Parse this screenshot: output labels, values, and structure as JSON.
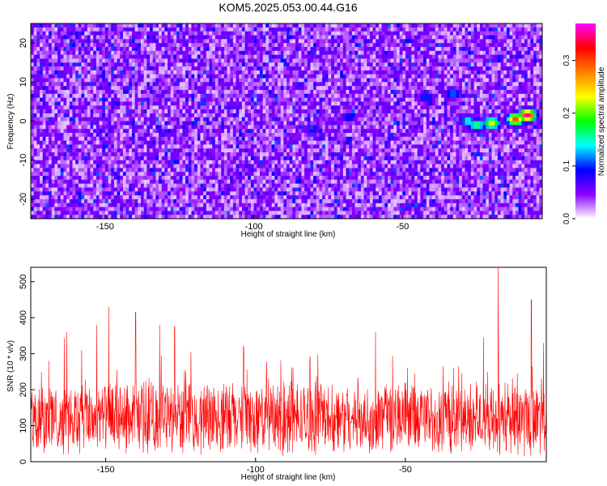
{
  "title": "KOM5.2025.053.00.44.G16",
  "chart_data": [
    {
      "type": "heatmap",
      "xlabel": "Height of straight line (km)",
      "ylabel": "Frequency (Hz)",
      "xlim": [
        -175,
        -3
      ],
      "ylim": [
        -25,
        25
      ],
      "x_ticks": [
        -150,
        -100,
        -50
      ],
      "y_ticks": [
        -20,
        -10,
        0,
        10,
        20
      ],
      "colorbar": {
        "label": "Normalized spectral amplitude",
        "range": [
          0.0,
          0.37
        ],
        "ticks": [
          0.0,
          0.1,
          0.2,
          0.3
        ],
        "colormap": [
          "#ffffff",
          "#8c00ff",
          "#0000ff",
          "#00ffff",
          "#00ff00",
          "#ffff00",
          "#ff8000",
          "#ff0000",
          "#ff00ff"
        ]
      },
      "hotspots": [
        {
          "x": -8,
          "y": 1.5,
          "value": 0.36
        },
        {
          "x": -12,
          "y": 0.5,
          "value": 0.3
        },
        {
          "x": -20,
          "y": -0.5,
          "value": 0.24
        },
        {
          "x": -25,
          "y": -1,
          "value": 0.18
        },
        {
          "x": -28,
          "y": 0,
          "value": 0.15
        },
        {
          "x": -33,
          "y": 7,
          "value": 0.12
        },
        {
          "x": -42,
          "y": 6,
          "value": 0.11
        },
        {
          "x": -68,
          "y": 1,
          "value": 0.1
        },
        {
          "x": -80,
          "y": -2,
          "value": 0.09
        }
      ]
    },
    {
      "type": "line",
      "xlabel": "Height of straight line (km)",
      "ylabel": "SNR (10 * v/v)",
      "xlim": [
        -175,
        -3
      ],
      "ylim": [
        0,
        540
      ],
      "x_ticks": [
        -150,
        -100,
        -50
      ],
      "y_ticks": [
        0,
        100,
        200,
        300,
        400,
        500
      ],
      "color": "#ff0000",
      "baseline_mean": 120,
      "peaks": [
        {
          "x": -169,
          "y": 280
        },
        {
          "x": -163,
          "y": 360
        },
        {
          "x": -158,
          "y": 310
        },
        {
          "x": -153,
          "y": 380
        },
        {
          "x": -149,
          "y": 430
        },
        {
          "x": -140,
          "y": 415
        },
        {
          "x": -132,
          "y": 380
        },
        {
          "x": -127,
          "y": 375
        },
        {
          "x": -104,
          "y": 320
        },
        {
          "x": -60,
          "y": 360
        },
        {
          "x": -24,
          "y": 345
        },
        {
          "x": -19,
          "y": 540
        },
        {
          "x": -8,
          "y": 450
        },
        {
          "x": -4,
          "y": 330
        }
      ]
    }
  ]
}
